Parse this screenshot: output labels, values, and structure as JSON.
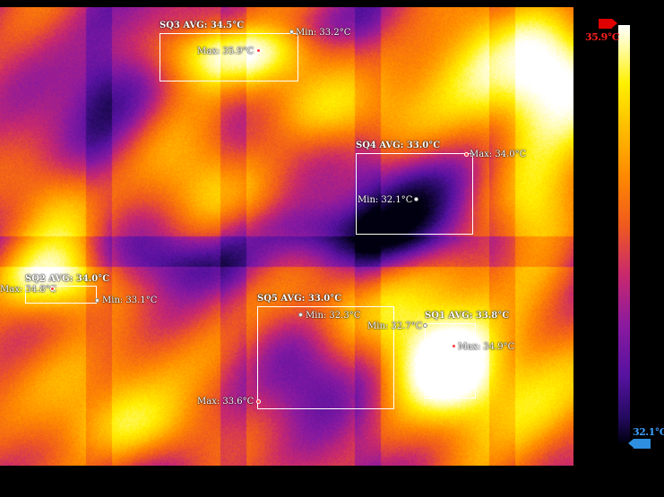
{
  "palette": [
    "#000010",
    "#240a60",
    "#5612a0",
    "#8a1aa0",
    "#c8286e",
    "#f05a1e",
    "#ff8a00",
    "#ffc000",
    "#fff000",
    "#fffb9a",
    "#ffffff"
  ],
  "scale": {
    "max_label": "35.9°C",
    "min_label": "32.1°C",
    "max_color": "#e00000",
    "min_color": "#2e8fe0"
  },
  "regions": {
    "sq1": {
      "label": "SQ1 AVG: 33.8°C",
      "min": "Min: 32.7°C",
      "max": "Max: 34.9°C"
    },
    "sq2": {
      "label": "SQ2 AVG: 34.0°C",
      "min": "Min: 33.1°C",
      "max": "Max: 34.8°C"
    },
    "sq3": {
      "label": "SQ3 AVG: 34.5°C",
      "min": "Min: 33.2°C",
      "max": "Max: 35.9°C"
    },
    "sq4": {
      "label": "SQ4 AVG: 33.0°C",
      "min": "Min: 32.1°C",
      "max": "Max: 34.0°C"
    },
    "sq5": {
      "label": "SQ5 AVG: 33.0°C",
      "min": "Min: 32.3°C",
      "max": "Max: 33.6°C"
    }
  }
}
